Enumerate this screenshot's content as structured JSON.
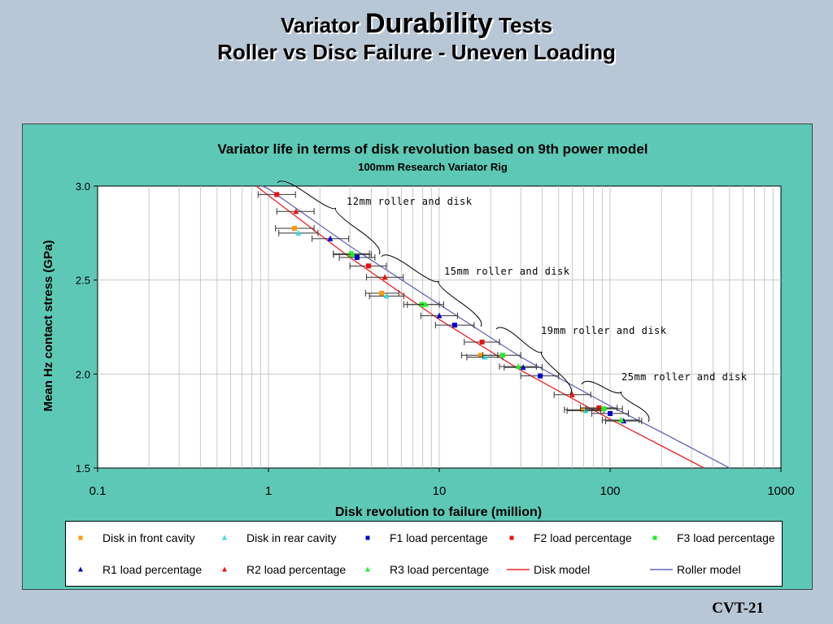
{
  "slide": {
    "title_word1": "Variator",
    "title_word2": "Durability",
    "title_word3": "Tests",
    "subtitle": "Roller vs Disc Failure - Uneven Loading",
    "footer": "CVT-21"
  },
  "chart_data": {
    "type": "scatter",
    "title": "Variator life in terms of disk revolution based on 9th power model",
    "subtitle": "100mm Research Variator Rig",
    "xlabel": "Disk revolution to failure (million)",
    "ylabel": "Mean Hz contact stress (GPa)",
    "xscale": "log",
    "xlim": [
      0.1,
      1000
    ],
    "ylim": [
      1.5,
      3.0
    ],
    "xticks": [
      0.1,
      1,
      10,
      100,
      1000
    ],
    "xtick_labels": [
      "0.1",
      "1",
      "10",
      "100",
      "1000"
    ],
    "yticks": [
      1.5,
      2.0,
      2.5,
      3.0
    ],
    "ytick_labels": [
      "1.5",
      "2.0",
      "2.5",
      "3.0"
    ],
    "grid": true,
    "series": [
      {
        "name": "Disk in front cavity",
        "marker": "square",
        "color": "#ff9900",
        "points": [
          {
            "x": 1.42,
            "y": 2.775,
            "xerr": [
              1.1,
              1.85
            ]
          },
          {
            "x": 4.6,
            "y": 2.43,
            "xerr": [
              3.7,
              5.8
            ]
          },
          {
            "x": 17.5,
            "y": 2.1,
            "xerr": [
              13.5,
              22
            ]
          },
          {
            "x": 69,
            "y": 1.81,
            "xerr": [
              54,
              88
            ]
          }
        ]
      },
      {
        "name": "Disk in rear cavity",
        "marker": "triangle",
        "color": "#33dddd",
        "points": [
          {
            "x": 1.5,
            "y": 2.75,
            "xerr": [
              1.15,
              1.95
            ]
          },
          {
            "x": 4.9,
            "y": 2.415,
            "xerr": [
              3.9,
              6.2
            ]
          },
          {
            "x": 18.5,
            "y": 2.09,
            "xerr": [
              14.5,
              23.5
            ]
          },
          {
            "x": 72,
            "y": 1.805,
            "xerr": [
              56,
              92
            ]
          }
        ]
      },
      {
        "name": "F1 load percentage",
        "marker": "square",
        "color": "#0000cc",
        "points": [
          {
            "x": 3.3,
            "y": 2.62,
            "xerr": [
              2.6,
              4.2
            ]
          },
          {
            "x": 12.3,
            "y": 2.26,
            "xerr": [
              9.5,
              16
            ]
          },
          {
            "x": 39,
            "y": 1.99,
            "xerr": [
              30,
              50
            ]
          },
          {
            "x": 100,
            "y": 1.79,
            "xerr": [
              78,
              128
            ]
          }
        ]
      },
      {
        "name": "F2 load percentage",
        "marker": "square",
        "color": "#ee1111",
        "points": [
          {
            "x": 1.12,
            "y": 2.955,
            "xerr": [
              0.87,
              1.44
            ]
          },
          {
            "x": 3.85,
            "y": 2.575,
            "xerr": [
              3.0,
              4.9
            ]
          },
          {
            "x": 17.8,
            "y": 2.17,
            "xerr": [
              14,
              22.5
            ]
          },
          {
            "x": 86,
            "y": 1.82,
            "xerr": [
              67,
              110
            ]
          }
        ]
      },
      {
        "name": "F3 load percentage",
        "marker": "square",
        "color": "#22ee22",
        "points": [
          {
            "x": 3.05,
            "y": 2.64,
            "xerr": [
              2.4,
              3.9
            ]
          },
          {
            "x": 7.9,
            "y": 2.37,
            "xerr": [
              6.2,
              10
            ]
          },
          {
            "x": 23.5,
            "y": 2.1,
            "xerr": [
              18,
              30
            ]
          },
          {
            "x": 92,
            "y": 1.815,
            "xerr": [
              72,
              118
            ]
          }
        ]
      },
      {
        "name": "R1 load percentage",
        "marker": "triangle",
        "color": "#0000cc",
        "points": [
          {
            "x": 2.3,
            "y": 2.72,
            "xerr": [
              1.8,
              2.95
            ]
          },
          {
            "x": 10,
            "y": 2.31,
            "xerr": [
              7.8,
              12.8
            ]
          },
          {
            "x": 31,
            "y": 2.035,
            "xerr": [
              24,
              40
            ]
          },
          {
            "x": 120,
            "y": 1.75,
            "xerr": [
              94,
              153
            ]
          }
        ]
      },
      {
        "name": "R2 load percentage",
        "marker": "triangle",
        "color": "#ee1111",
        "points": [
          {
            "x": 1.45,
            "y": 2.865,
            "xerr": [
              1.12,
              1.85
            ]
          },
          {
            "x": 4.8,
            "y": 2.515,
            "xerr": [
              3.75,
              6.15
            ]
          },
          {
            "x": 60,
            "y": 1.89,
            "xerr": [
              47,
              77
            ]
          }
        ]
      },
      {
        "name": "R3 load percentage",
        "marker": "triangle",
        "color": "#22ee22",
        "points": [
          {
            "x": 3.1,
            "y": 2.635,
            "xerr": [
              2.4,
              4.0
            ]
          },
          {
            "x": 8.3,
            "y": 2.37,
            "xerr": [
              6.5,
              10.6
            ]
          },
          {
            "x": 29,
            "y": 2.04,
            "xerr": [
              22.5,
              37
            ]
          },
          {
            "x": 116,
            "y": 1.755,
            "xerr": [
              90,
              148
            ]
          }
        ]
      },
      {
        "name": "Disk model",
        "marker": "line",
        "color": "#ee2222",
        "line": [
          {
            "x": 0.85,
            "y": 3.0
          },
          {
            "x": 1,
            "y": 2.95
          },
          {
            "x": 3,
            "y": 2.62
          },
          {
            "x": 10,
            "y": 2.29
          },
          {
            "x": 30,
            "y": 2.02
          },
          {
            "x": 100,
            "y": 1.76
          },
          {
            "x": 355,
            "y": 1.5
          }
        ]
      },
      {
        "name": "Roller model",
        "marker": "line",
        "color": "#6666bb",
        "line": [
          {
            "x": 0.92,
            "y": 3.0
          },
          {
            "x": 1,
            "y": 2.985
          },
          {
            "x": 3,
            "y": 2.68
          },
          {
            "x": 10,
            "y": 2.37
          },
          {
            "x": 30,
            "y": 2.09
          },
          {
            "x": 100,
            "y": 1.83
          },
          {
            "x": 200,
            "y": 1.69
          },
          {
            "x": 500,
            "y": 1.5
          }
        ]
      }
    ],
    "annotations": [
      {
        "text": "12mm roller and disk",
        "group": 1
      },
      {
        "text": "15mm roller and disk",
        "group": 2
      },
      {
        "text": "19mm roller and disk",
        "group": 3
      },
      {
        "text": "25mm roller and disk",
        "group": 4
      }
    ],
    "legend_position": "bottom"
  }
}
